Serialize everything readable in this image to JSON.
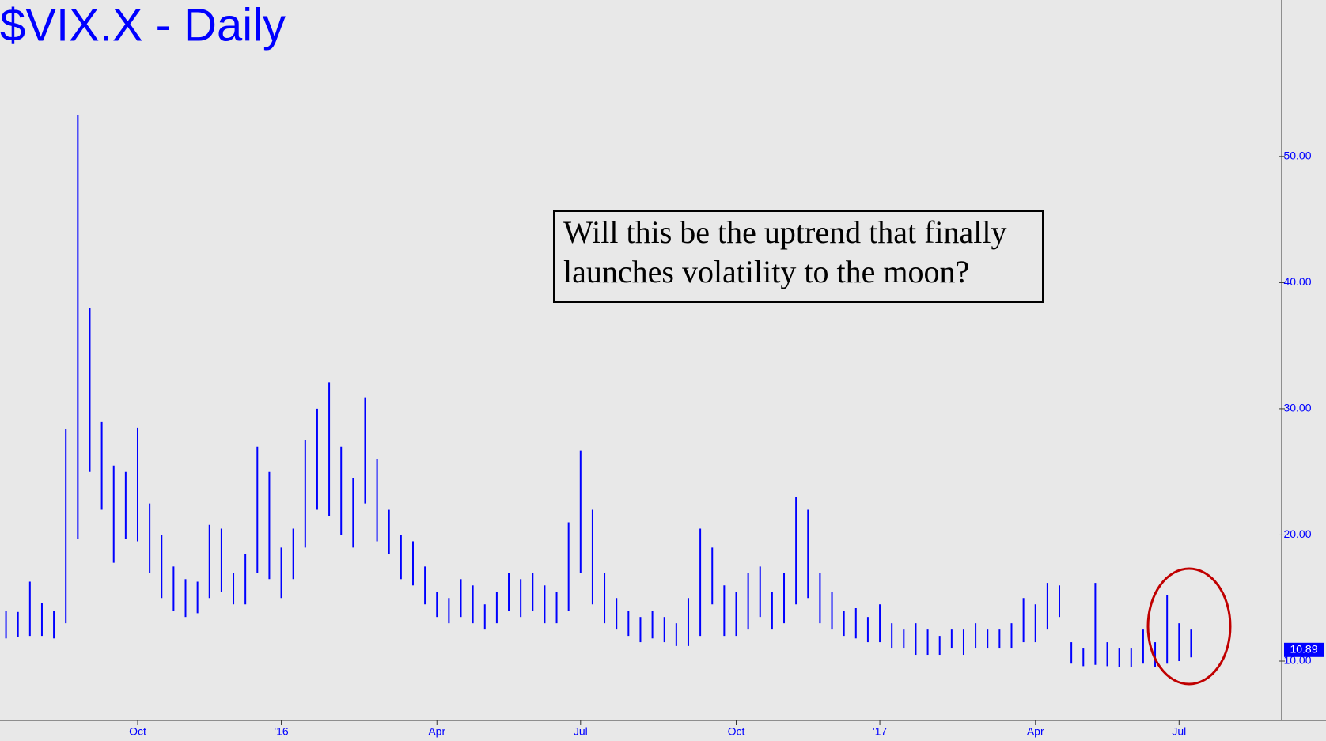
{
  "chart_data": {
    "type": "range-bar",
    "title": "$VIX.X - Daily",
    "annotation": [
      "Will this be the uptrend that finally",
      "launches volatility to the moon?"
    ],
    "color": "#0000ff",
    "categories": [
      null,
      null,
      null,
      null,
      null,
      null,
      null,
      null,
      null,
      null,
      null,
      "Oct",
      null,
      null,
      null,
      null,
      null,
      null,
      null,
      null,
      null,
      null,
      null,
      "'16",
      null,
      null,
      null,
      null,
      null,
      null,
      null,
      null,
      null,
      null,
      null,
      null,
      "Apr",
      null,
      null,
      null,
      null,
      null,
      null,
      null,
      null,
      null,
      null,
      null,
      "Jul",
      null,
      null,
      null,
      null,
      null,
      null,
      null,
      null,
      null,
      null,
      null,
      null,
      "Oct",
      null,
      null,
      null,
      null,
      null,
      null,
      null,
      null,
      null,
      null,
      null,
      "'17",
      null,
      null,
      null,
      null,
      null,
      null,
      null,
      null,
      null,
      null,
      null,
      null,
      "Apr",
      null,
      null,
      null,
      null,
      null,
      null,
      null,
      null,
      null,
      null,
      null,
      "Jul",
      null
    ],
    "high": [
      14.0,
      13.9,
      16.3,
      14.6,
      14.0,
      28.4,
      53.3,
      38.0,
      29.0,
      25.5,
      25.0,
      28.5,
      22.5,
      20.0,
      17.5,
      16.5,
      16.3,
      20.8,
      20.5,
      17.0,
      18.5,
      27.0,
      25.0,
      19.0,
      20.5,
      27.5,
      30.0,
      32.1,
      27.0,
      24.5,
      30.9,
      26.0,
      22.0,
      20.0,
      19.5,
      17.5,
      15.5,
      15.0,
      16.5,
      16.0,
      14.5,
      15.5,
      17.0,
      16.5,
      17.0,
      16.0,
      15.5,
      21.0,
      26.7,
      22.0,
      17.0,
      15.0,
      14.0,
      13.5,
      14.0,
      13.5,
      13.0,
      15.0,
      20.5,
      19.0,
      16.0,
      15.5,
      17.0,
      17.5,
      15.5,
      17.0,
      23.0,
      22.0,
      17.0,
      15.5,
      14.0,
      14.2,
      13.5,
      14.5,
      13.0,
      12.5,
      13.0,
      12.5,
      12.0,
      12.5,
      12.5,
      13.0,
      12.5,
      12.5,
      13.0,
      15.0,
      14.5,
      16.2,
      16.0,
      11.5,
      11.0,
      16.2,
      11.5,
      11.0,
      11.0,
      12.5,
      11.5,
      15.2,
      13.0,
      12.5
    ],
    "low": [
      11.8,
      11.9,
      12.0,
      12.0,
      11.8,
      13.0,
      19.7,
      25.0,
      22.0,
      17.8,
      19.7,
      19.5,
      17.0,
      15.0,
      14.0,
      13.5,
      13.8,
      15.0,
      15.5,
      14.5,
      14.5,
      17.0,
      16.5,
      15.0,
      16.5,
      19.0,
      22.0,
      21.5,
      20.0,
      19.0,
      22.5,
      19.5,
      18.5,
      16.5,
      16.0,
      14.5,
      13.5,
      13.0,
      13.5,
      13.0,
      12.5,
      13.0,
      14.0,
      13.5,
      14.0,
      13.0,
      13.0,
      14.0,
      17.0,
      14.5,
      13.0,
      12.5,
      12.0,
      11.5,
      11.8,
      11.5,
      11.2,
      11.2,
      12.0,
      14.5,
      12.0,
      12.0,
      12.5,
      13.5,
      12.5,
      13.0,
      14.5,
      15.0,
      13.0,
      12.5,
      12.0,
      11.8,
      11.5,
      11.5,
      11.0,
      11.0,
      10.5,
      10.5,
      10.5,
      11.0,
      10.5,
      11.0,
      11.0,
      11.0,
      11.0,
      11.5,
      11.5,
      12.5,
      13.5,
      9.8,
      9.6,
      9.7,
      9.6,
      9.5,
      9.5,
      9.8,
      9.5,
      9.8,
      10.0,
      10.3
    ],
    "last_value": 10.89,
    "ylim": [
      5.3,
      62.4
    ],
    "yticks": [
      {
        "value": 10,
        "label": "10.00"
      },
      {
        "value": 20,
        "label": "20.00"
      },
      {
        "value": 30,
        "label": "30.00"
      },
      {
        "value": 40,
        "label": "40.00"
      },
      {
        "value": 50,
        "label": "50.00"
      }
    ]
  }
}
